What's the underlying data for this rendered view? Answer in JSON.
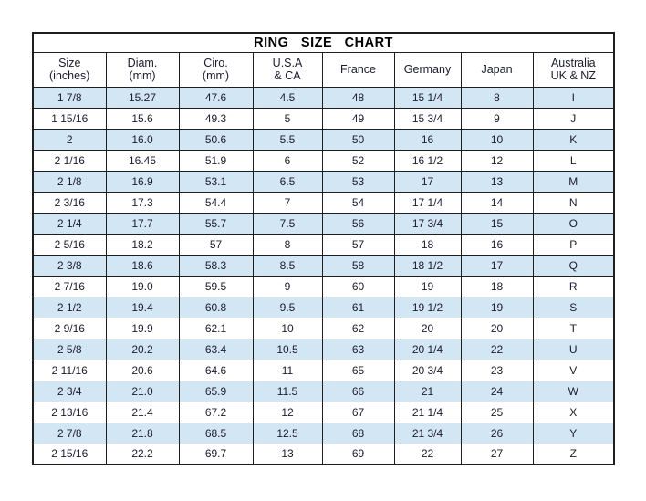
{
  "title": "RING SIZE CHART",
  "colors": {
    "row_stripe": "#d3e6f4",
    "border": "#1f1f1f",
    "text": "#1b1b2e",
    "background": "#ffffff"
  },
  "chart_data": {
    "type": "table",
    "title": "RING SIZE CHART",
    "columns": [
      {
        "key": "size-inches",
        "line1": "Size",
        "line2": "(inches)"
      },
      {
        "key": "diam-mm",
        "line1": "Diam.",
        "line2": "(mm)"
      },
      {
        "key": "ciro-mm",
        "line1": "Ciro.",
        "line2": "(mm)"
      },
      {
        "key": "usa-ca",
        "line1": "U.S.A",
        "line2": "& CA"
      },
      {
        "key": "france",
        "line1": "France",
        "line2": ""
      },
      {
        "key": "germany",
        "line1": "Germany",
        "line2": ""
      },
      {
        "key": "japan",
        "line1": "Japan",
        "line2": ""
      },
      {
        "key": "australia-uk-nz",
        "line1": "Australia",
        "line2": "UK & NZ"
      }
    ],
    "rows": [
      [
        "1 7/8",
        "15.27",
        "47.6",
        "4.5",
        "48",
        "15 1/4",
        "8",
        "I"
      ],
      [
        "1 15/16",
        "15.6",
        "49.3",
        "5",
        "49",
        "15 3/4",
        "9",
        "J"
      ],
      [
        "2",
        "16.0",
        "50.6",
        "5.5",
        "50",
        "16",
        "10",
        "K"
      ],
      [
        "2 1/16",
        "16.45",
        "51.9",
        "6",
        "52",
        "16 1/2",
        "12",
        "L"
      ],
      [
        "2 1/8",
        "16.9",
        "53.1",
        "6.5",
        "53",
        "17",
        "13",
        "M"
      ],
      [
        "2 3/16",
        "17.3",
        "54.4",
        "7",
        "54",
        "17 1/4",
        "14",
        "N"
      ],
      [
        "2 1/4",
        "17.7",
        "55.7",
        "7.5",
        "56",
        "17 3/4",
        "15",
        "O"
      ],
      [
        "2 5/16",
        "18.2",
        "57",
        "8",
        "57",
        "18",
        "16",
        "P"
      ],
      [
        "2 3/8",
        "18.6",
        "58.3",
        "8.5",
        "58",
        "18 1/2",
        "17",
        "Q"
      ],
      [
        "2 7/16",
        "19.0",
        "59.5",
        "9",
        "60",
        "19",
        "18",
        "R"
      ],
      [
        "2 1/2",
        "19.4",
        "60.8",
        "9.5",
        "61",
        "19 1/2",
        "19",
        "S"
      ],
      [
        "2 9/16",
        "19.9",
        "62.1",
        "10",
        "62",
        "20",
        "20",
        "T"
      ],
      [
        "2 5/8",
        "20.2",
        "63.4",
        "10.5",
        "63",
        "20 1/4",
        "22",
        "U"
      ],
      [
        "2 11/16",
        "20.6",
        "64.6",
        "11",
        "65",
        "20 3/4",
        "23",
        "V"
      ],
      [
        "2 3/4",
        "21.0",
        "65.9",
        "11.5",
        "66",
        "21",
        "24",
        "W"
      ],
      [
        "2 13/16",
        "21.4",
        "67.2",
        "12",
        "67",
        "21 1/4",
        "25",
        "X"
      ],
      [
        "2 7/8",
        "21.8",
        "68.5",
        "12.5",
        "68",
        "21 3/4",
        "26",
        "Y"
      ],
      [
        "2 15/16",
        "22.2",
        "69.7",
        "13",
        "69",
        "22",
        "27",
        "Z"
      ]
    ]
  }
}
